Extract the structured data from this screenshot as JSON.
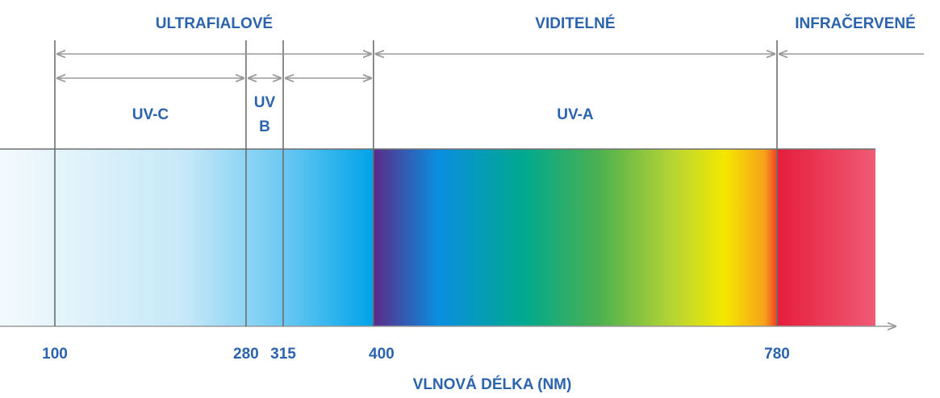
{
  "regions": [
    "ULTRAFIALOVÉ",
    "VIDITELNÉ",
    "INFRAČERVENÉ"
  ],
  "bands": [
    [
      "UV-C"
    ],
    [
      "UV",
      "B"
    ],
    [
      "UV-A"
    ]
  ],
  "axis": {
    "ticks": [
      100,
      280,
      315,
      400,
      780
    ],
    "label": "VLNOVÁ DÉLKA (NM)"
  }
}
